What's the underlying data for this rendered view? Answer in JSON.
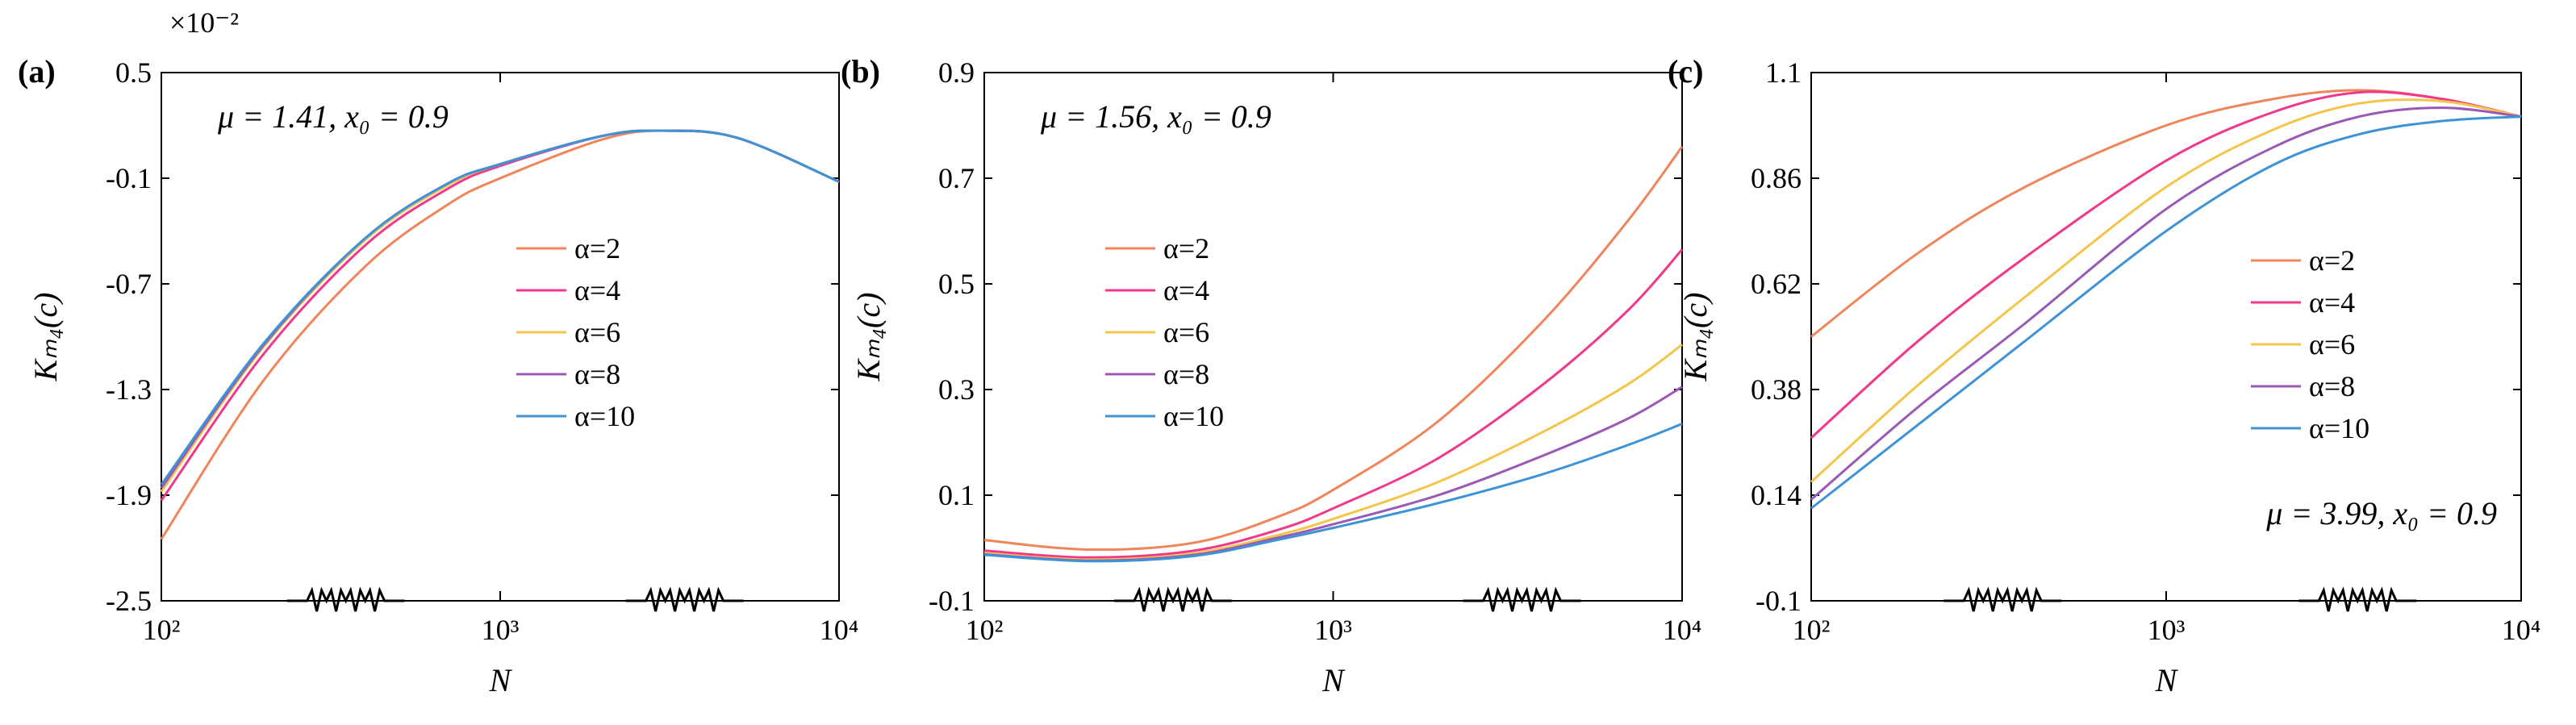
{
  "chart_data": [
    {
      "type": "line",
      "panel_label": "(a)",
      "annotation": "μ = 1.41, x₀ = 0.9",
      "annotation_position": "top-left",
      "scale_note": "×10⁻²",
      "xlabel": "N",
      "ylabel": "Kₘ₄(c)",
      "xscale": "log",
      "xlim": [
        100,
        10000
      ],
      "xticks": [
        "10²",
        "10³",
        "10⁴"
      ],
      "ylim": [
        -2.5,
        0.5
      ],
      "yticks": [
        0.5,
        -0.1,
        -0.7,
        -1.3,
        -1.9,
        -2.5
      ],
      "ytick_labels": [
        "0.5",
        "-0.1",
        "-0.7",
        "-1.3",
        "-1.9",
        "-2.5"
      ],
      "legend_position": "center-right",
      "series": [
        {
          "name": "α=2",
          "color": "#F0845A",
          "x": [
            100,
            200,
            400,
            700,
            1000,
            2000,
            3000,
            5000,
            10000
          ],
          "values": [
            -2.15,
            -1.25,
            -0.6,
            -0.25,
            -0.1,
            0.12,
            0.17,
            0.13,
            -0.12
          ]
        },
        {
          "name": "α=4",
          "color": "#F0398A",
          "x": [
            100,
            200,
            400,
            700,
            1000,
            2000,
            3000,
            5000,
            10000
          ],
          "values": [
            -1.93,
            -1.1,
            -0.48,
            -0.16,
            -0.03,
            0.14,
            0.17,
            0.13,
            -0.12
          ]
        },
        {
          "name": "α=6",
          "color": "#F3C54A",
          "x": [
            100,
            200,
            400,
            700,
            1000,
            2000,
            3000,
            5000,
            10000
          ],
          "values": [
            -1.88,
            -1.06,
            -0.45,
            -0.14,
            -0.02,
            0.14,
            0.17,
            0.13,
            -0.12
          ]
        },
        {
          "name": "α=8",
          "color": "#9B59B6",
          "x": [
            100,
            200,
            400,
            700,
            1000,
            2000,
            3000,
            5000,
            10000
          ],
          "values": [
            -1.86,
            -1.05,
            -0.44,
            -0.13,
            -0.02,
            0.14,
            0.17,
            0.13,
            -0.12
          ]
        },
        {
          "name": "α=10",
          "color": "#3D93D6",
          "x": [
            100,
            200,
            400,
            700,
            1000,
            2000,
            3000,
            5000,
            10000
          ],
          "values": [
            -1.84,
            -1.04,
            -0.44,
            -0.13,
            -0.02,
            0.14,
            0.17,
            0.13,
            -0.12
          ]
        }
      ]
    },
    {
      "type": "line",
      "panel_label": "(b)",
      "annotation": "μ = 1.56, x₀ = 0.9",
      "annotation_position": "top-left",
      "xlabel": "N",
      "ylabel": "Kₘ₄(c)",
      "xscale": "log",
      "xlim": [
        100,
        10000
      ],
      "xticks": [
        "10²",
        "10³",
        "10⁴"
      ],
      "ylim": [
        -0.1,
        0.9
      ],
      "yticks": [
        0.9,
        0.7,
        0.5,
        0.3,
        0.1,
        -0.1
      ],
      "ytick_labels": [
        "0.9",
        "0.7",
        "0.5",
        "0.3",
        "0.1",
        "-0.1"
      ],
      "legend_position": "center-right",
      "series": [
        {
          "name": "α=2",
          "color": "#F0845A",
          "x": [
            100,
            200,
            400,
            700,
            1000,
            2000,
            4000,
            7000,
            10000
          ],
          "values": [
            0.015,
            -0.003,
            0.01,
            0.06,
            0.11,
            0.24,
            0.43,
            0.62,
            0.76
          ]
        },
        {
          "name": "α=4",
          "color": "#F0398A",
          "x": [
            100,
            200,
            400,
            700,
            1000,
            2000,
            4000,
            7000,
            10000
          ],
          "values": [
            -0.005,
            -0.018,
            -0.005,
            0.035,
            0.075,
            0.17,
            0.31,
            0.45,
            0.565
          ]
        },
        {
          "name": "α=6",
          "color": "#F3C54A",
          "x": [
            100,
            200,
            400,
            700,
            1000,
            2000,
            4000,
            7000,
            10000
          ],
          "values": [
            -0.01,
            -0.022,
            -0.01,
            0.025,
            0.055,
            0.125,
            0.22,
            0.31,
            0.385
          ]
        },
        {
          "name": "α=8",
          "color": "#9B59B6",
          "x": [
            100,
            200,
            400,
            700,
            1000,
            2000,
            4000,
            7000,
            10000
          ],
          "values": [
            -0.012,
            -0.024,
            -0.013,
            0.02,
            0.045,
            0.1,
            0.175,
            0.245,
            0.305
          ]
        },
        {
          "name": "α=10",
          "color": "#3D93D6",
          "x": [
            100,
            200,
            400,
            700,
            1000,
            2000,
            4000,
            7000,
            10000
          ],
          "values": [
            -0.013,
            -0.025,
            -0.015,
            0.016,
            0.038,
            0.085,
            0.14,
            0.195,
            0.235
          ]
        }
      ]
    },
    {
      "type": "line",
      "panel_label": "(c)",
      "annotation": "μ = 3.99, x₀ = 0.9",
      "annotation_position": "bottom-right",
      "xlabel": "N",
      "ylabel": "Kₘ₄(c)",
      "xscale": "log",
      "xlim": [
        100,
        10000
      ],
      "xticks": [
        "10²",
        "10³",
        "10⁴"
      ],
      "ylim": [
        -0.1,
        1.1
      ],
      "yticks": [
        1.1,
        0.86,
        0.62,
        0.38,
        0.14,
        -0.1
      ],
      "ytick_labels": [
        "1.1",
        "0.86",
        "0.62",
        "0.38",
        "0.14",
        "-0.1"
      ],
      "legend_position": "center-right",
      "series": [
        {
          "name": "α=2",
          "color": "#F0845A",
          "x": [
            100,
            200,
            400,
            1000,
            2000,
            3500,
            6000,
            10000
          ],
          "values": [
            0.5,
            0.69,
            0.84,
            0.98,
            1.04,
            1.06,
            1.04,
            1.0
          ]
        },
        {
          "name": "α=4",
          "color": "#F0398A",
          "x": [
            100,
            200,
            400,
            1000,
            2000,
            3500,
            6000,
            10000
          ],
          "values": [
            0.27,
            0.49,
            0.68,
            0.9,
            1.01,
            1.055,
            1.04,
            1.0
          ]
        },
        {
          "name": "α=6",
          "color": "#F3C54A",
          "x": [
            100,
            200,
            400,
            1000,
            2000,
            3500,
            6000,
            10000
          ],
          "values": [
            0.17,
            0.39,
            0.59,
            0.84,
            0.97,
            1.03,
            1.035,
            1.0
          ]
        },
        {
          "name": "α=8",
          "color": "#9B59B6",
          "x": [
            100,
            200,
            400,
            1000,
            2000,
            3500,
            6000,
            10000
          ],
          "values": [
            0.13,
            0.34,
            0.53,
            0.79,
            0.93,
            1.0,
            1.02,
            1.0
          ]
        },
        {
          "name": "α=10",
          "color": "#3D93D6",
          "x": [
            100,
            200,
            400,
            1000,
            2000,
            3500,
            6000,
            10000
          ],
          "values": [
            0.11,
            0.3,
            0.49,
            0.74,
            0.89,
            0.96,
            0.99,
            1.0
          ]
        }
      ]
    }
  ]
}
